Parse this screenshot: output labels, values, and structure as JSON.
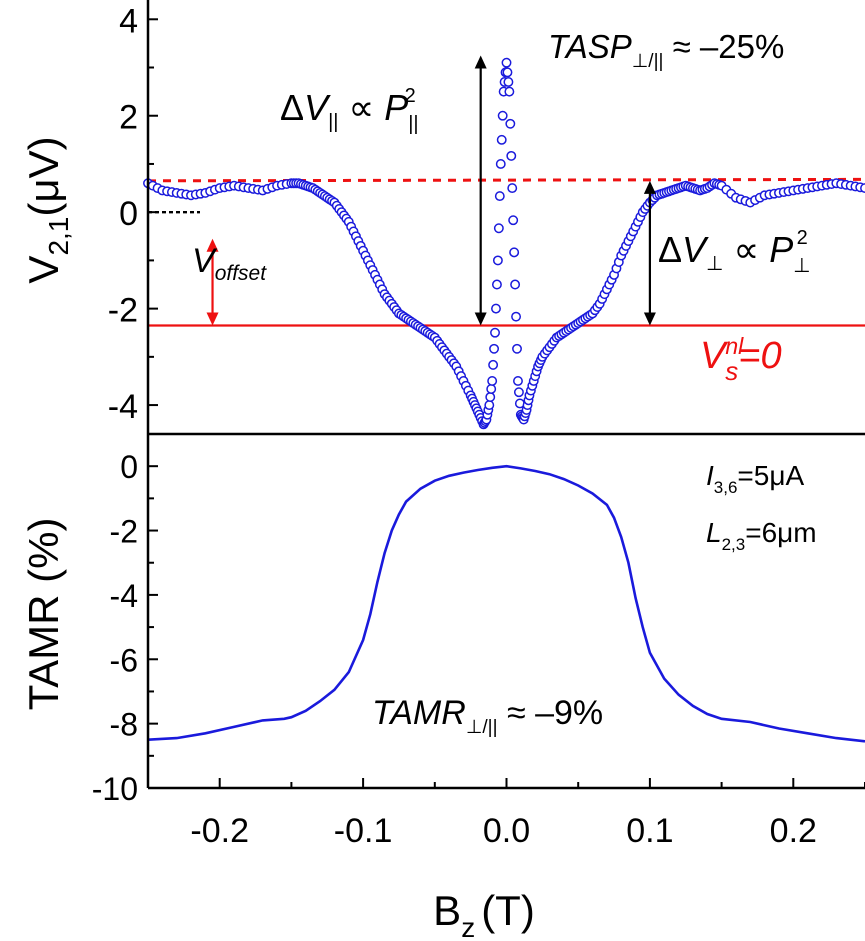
{
  "chart_data": [
    {
      "type": "scatter",
      "panel": "top",
      "ylabel": {
        "main": "V",
        "sub": "2,1",
        "unit": "(μV)"
      },
      "xlim": [
        -0.25,
        0.25
      ],
      "ylim": [
        -4.6,
        4.4
      ],
      "yticks": [
        "4",
        "2",
        "0",
        "-2",
        "-4"
      ],
      "ytick_values": [
        4,
        2,
        0,
        -2,
        -4
      ],
      "colors": {
        "points": "#1a1adc",
        "reference": "#ee1111",
        "annotation": "#000000"
      },
      "reference_lines": {
        "zero_level": -2.35,
        "dashed_baseline": {
          "x": [
            -0.25,
            0.25
          ],
          "y": [
            0.65,
            0.68
          ]
        },
        "offset_marker_y": 0.0
      },
      "series": [
        {
          "x": [
            -0.25,
            -0.24,
            -0.23,
            -0.22,
            -0.21,
            -0.2,
            -0.19,
            -0.18,
            -0.17,
            -0.16,
            -0.15,
            -0.145,
            -0.14,
            -0.135,
            -0.13,
            -0.125,
            -0.12,
            -0.115,
            -0.11,
            -0.105,
            -0.1,
            -0.095,
            -0.09,
            -0.085,
            -0.08,
            -0.075,
            -0.07,
            -0.065,
            -0.06,
            -0.055,
            -0.05,
            -0.045,
            -0.04,
            -0.035,
            -0.03,
            -0.025,
            -0.022,
            -0.019,
            -0.016,
            -0.014,
            -0.012,
            -0.01,
            -0.008,
            -0.006,
            -0.004,
            -0.002,
            0.0,
            0.002,
            0.004,
            0.006,
            0.008,
            0.01,
            0.012,
            0.014,
            0.016,
            0.019,
            0.022,
            0.025,
            0.03,
            0.035,
            0.04,
            0.045,
            0.05,
            0.055,
            0.06,
            0.065,
            0.07,
            0.075,
            0.08,
            0.085,
            0.09,
            0.095,
            0.1,
            0.105,
            0.11,
            0.115,
            0.12,
            0.125,
            0.13,
            0.135,
            0.14,
            0.145,
            0.15,
            0.16,
            0.17,
            0.18,
            0.19,
            0.2,
            0.21,
            0.22,
            0.23,
            0.24,
            0.25
          ],
          "y": [
            0.6,
            0.45,
            0.4,
            0.35,
            0.4,
            0.5,
            0.55,
            0.5,
            0.45,
            0.55,
            0.6,
            0.6,
            0.55,
            0.5,
            0.4,
            0.3,
            0.2,
            0.0,
            -0.2,
            -0.5,
            -0.8,
            -1.1,
            -1.4,
            -1.7,
            -1.9,
            -2.1,
            -2.2,
            -2.3,
            -2.4,
            -2.5,
            -2.6,
            -2.8,
            -3.0,
            -3.2,
            -3.5,
            -3.8,
            -4.0,
            -4.2,
            -4.4,
            -4.3,
            -4.0,
            -3.5,
            -2.5,
            -1.0,
            1.0,
            2.5,
            3.1,
            2.5,
            0.5,
            -1.5,
            -3.5,
            -4.2,
            -4.3,
            -4.1,
            -3.8,
            -3.5,
            -3.2,
            -3.0,
            -2.8,
            -2.6,
            -2.5,
            -2.4,
            -2.3,
            -2.2,
            -2.1,
            -1.9,
            -1.6,
            -1.3,
            -0.9,
            -0.6,
            -0.3,
            0.0,
            0.2,
            0.35,
            0.4,
            0.45,
            0.5,
            0.55,
            0.5,
            0.45,
            0.5,
            0.6,
            0.55,
            0.3,
            0.2,
            0.35,
            0.4,
            0.45,
            0.5,
            0.55,
            0.6,
            0.55,
            0.5
          ]
        }
      ]
    },
    {
      "type": "line",
      "panel": "bottom",
      "xlabel": {
        "main": "B",
        "sub": "z",
        "unit": "(T)"
      },
      "ylabel": "TAMR (%)",
      "xlim": [
        -0.25,
        0.25
      ],
      "ylim": [
        -10,
        1
      ],
      "yticks": [
        "0",
        "-2",
        "-4",
        "-6",
        "-8",
        "-10"
      ],
      "ytick_values": [
        0,
        -2,
        -4,
        -6,
        -8,
        -10
      ],
      "xticks": [
        "-0.2",
        "-0.1",
        "0.0",
        "0.1",
        "0.2"
      ],
      "xtick_values": [
        -0.2,
        -0.1,
        0.0,
        0.1,
        0.2
      ],
      "colors": {
        "line": "#1a1adc"
      },
      "series": [
        {
          "x": [
            -0.25,
            -0.23,
            -0.21,
            -0.19,
            -0.17,
            -0.155,
            -0.15,
            -0.14,
            -0.13,
            -0.12,
            -0.11,
            -0.1,
            -0.095,
            -0.09,
            -0.085,
            -0.08,
            -0.075,
            -0.07,
            -0.06,
            -0.05,
            -0.04,
            -0.03,
            -0.02,
            -0.01,
            0.0,
            0.01,
            0.02,
            0.03,
            0.04,
            0.05,
            0.06,
            0.07,
            0.075,
            0.08,
            0.085,
            0.09,
            0.095,
            0.1,
            0.11,
            0.12,
            0.13,
            0.14,
            0.15,
            0.17,
            0.19,
            0.21,
            0.23,
            0.25
          ],
          "y": [
            -8.5,
            -8.45,
            -8.3,
            -8.1,
            -7.9,
            -7.85,
            -7.8,
            -7.6,
            -7.3,
            -6.95,
            -6.4,
            -5.4,
            -4.6,
            -3.6,
            -2.7,
            -2.0,
            -1.5,
            -1.1,
            -0.7,
            -0.45,
            -0.3,
            -0.2,
            -0.12,
            -0.05,
            0.0,
            -0.07,
            -0.15,
            -0.25,
            -0.4,
            -0.6,
            -0.85,
            -1.2,
            -1.6,
            -2.2,
            -3.0,
            -4.1,
            -5.0,
            -5.8,
            -6.6,
            -7.1,
            -7.45,
            -7.7,
            -7.85,
            -7.95,
            -8.15,
            -8.3,
            -8.45,
            -8.55
          ]
        }
      ]
    }
  ],
  "annotations": {
    "tasp": {
      "main": "TASP",
      "sub": "⊥/||",
      "rest": " ≈ –25%"
    },
    "dv_par": {
      "delta": "Δ",
      "v": "V",
      "vsub": "||",
      "prop": " ∝ ",
      "p": "P",
      "psub": "||",
      "psup": "2"
    },
    "dv_perp": {
      "delta": "Δ",
      "v": "V",
      "vsub": "⊥",
      "prop": " ∝ ",
      "p": "P",
      "psub": "⊥",
      "psup": "2"
    },
    "voffset": {
      "main": "V",
      "sub": "offset"
    },
    "vnl": {
      "main": "V",
      "sup": "nl",
      "sub": "s",
      "rest": "=0"
    },
    "current": {
      "main": "I",
      "sub": "3,6",
      "rest": "=5μA"
    },
    "length": {
      "main": "L",
      "sub": "2,3",
      "rest": "=6μm"
    },
    "tamr": {
      "main": "TAMR",
      "sub": "⊥/||",
      "rest": " ≈ –9%"
    }
  }
}
